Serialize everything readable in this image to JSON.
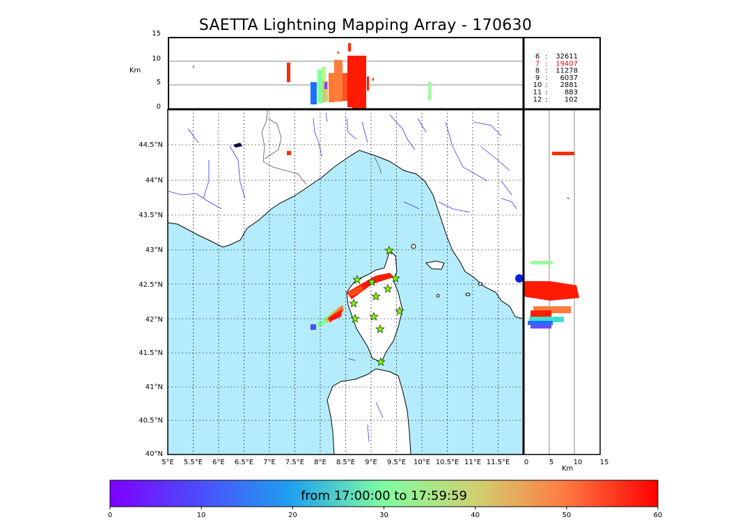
{
  "title": "SAETTA Lightning Mapping Array - 170630",
  "altitude_panel": {
    "unit_label": "Km",
    "y_ticks": [
      "15",
      "10",
      "5",
      "0"
    ]
  },
  "lon_ticks": [
    "5°E",
    "5.5°E",
    "6°E",
    "6.5°E",
    "7°E",
    "7.5°E",
    "8°E",
    "8.5°E",
    "9°E",
    "9.5°E",
    "10°E",
    "10.5°E",
    "11°E",
    "11.5°E"
  ],
  "lat_ticks": [
    "44.5°N",
    "44°N",
    "43.5°N",
    "43°N",
    "42.5°N",
    "42°N",
    "41.5°N",
    "41°N",
    "40.5°N",
    "40°N"
  ],
  "side_panel": {
    "unit_label": "Km",
    "x_ticks": [
      "0",
      "5",
      "10",
      "15"
    ]
  },
  "station_counts": [
    {
      "stations": "6",
      "count": "32611",
      "color": "#000000"
    },
    {
      "stations": "7",
      "count": "19407",
      "color": "#ff0000"
    },
    {
      "stations": "8",
      "count": "11278",
      "color": "#000000"
    },
    {
      "stations": "9",
      "count": "6037",
      "color": "#000000"
    },
    {
      "stations": "10",
      "count": "2881",
      "color": "#000000"
    },
    {
      "stations": "11",
      "count": "883",
      "color": "#000000"
    },
    {
      "stations": "12",
      "count": "102",
      "color": "#000000"
    }
  ],
  "colorbar": {
    "label": "from 17:00:00 to 17:59:59",
    "ticks": [
      "0",
      "10",
      "20",
      "30",
      "40",
      "50",
      "60"
    ]
  },
  "colors": {
    "sea": "#b4ecfb",
    "land": "#ffffff",
    "rivers": "#3434ff",
    "stations": "#7cfc00"
  }
}
